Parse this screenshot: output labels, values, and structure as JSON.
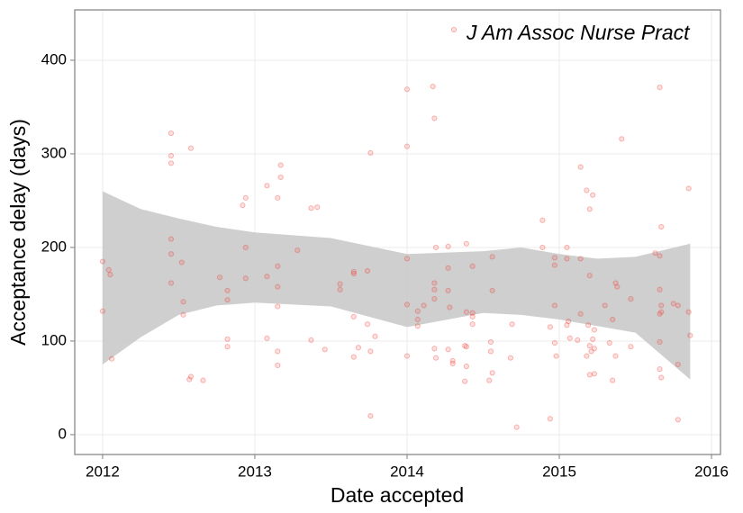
{
  "chart_data": {
    "type": "scatter",
    "xlabel": "Date accepted",
    "ylabel": "Acceptance delay (days)",
    "xlim": [
      2011.817,
      2016.059
    ],
    "ylim": [
      -21.2,
      453.8
    ],
    "xticks": [
      2012,
      2013,
      2014,
      2015,
      2016
    ],
    "yticks": [
      0,
      100,
      200,
      300,
      400
    ],
    "grid": true,
    "legend": "top-right",
    "band": {
      "color": "#cccccc",
      "x": [
        2012.0,
        2012.25,
        2012.5,
        2012.75,
        2013.0,
        2013.5,
        2014.0,
        2014.5,
        2014.75,
        2015.0,
        2015.25,
        2015.5,
        2015.86
      ],
      "upper": [
        260,
        241,
        231,
        222,
        216,
        210,
        193,
        196,
        200,
        193,
        188,
        190,
        204
      ],
      "lower": [
        75,
        104,
        128,
        138,
        141,
        137,
        115,
        130,
        128,
        123,
        116,
        109,
        59
      ]
    },
    "series": [
      {
        "name": "J Am Assoc Nurse Pract",
        "color": "#f0392f",
        "x": [
          2012.0,
          2012.0,
          2012.04,
          2012.05,
          2012.06,
          2012.45,
          2012.45,
          2012.45,
          2012.45,
          2012.45,
          2012.45,
          2012.52,
          2012.53,
          2012.53,
          2012.58,
          2012.58,
          2012.57,
          2012.66,
          2012.77,
          2012.82,
          2012.82,
          2012.82,
          2012.82,
          2012.92,
          2012.94,
          2012.94,
          2012.94,
          2013.08,
          2013.08,
          2013.08,
          2013.15,
          2013.15,
          2013.15,
          2013.15,
          2013.15,
          2013.17,
          2013.17,
          2013.15,
          2013.28,
          2013.37,
          2013.41,
          2013.37,
          2013.46,
          2013.56,
          2013.56,
          2013.65,
          2013.65,
          2013.65,
          2013.68,
          2013.65,
          2013.74,
          2013.74,
          2013.76,
          2013.76,
          2013.76,
          2013.79,
          2014.0,
          2014.0,
          2014.0,
          2014.0,
          2014.0,
          2014.07,
          2014.07,
          2014.07,
          2014.11,
          2014.17,
          2014.18,
          2014.18,
          2014.18,
          2014.18,
          2014.19,
          2014.18,
          2014.19,
          2014.27,
          2014.27,
          2014.27,
          2014.28,
          2014.27,
          2014.3,
          2014.3,
          2014.39,
          2014.39,
          2014.38,
          2014.39,
          2014.38,
          2014.39,
          2014.43,
          2014.43,
          2014.43,
          2014.43,
          2014.56,
          2014.56,
          2014.55,
          2014.55,
          2014.56,
          2014.54,
          2014.68,
          2014.69,
          2014.72,
          2014.89,
          2014.89,
          2014.94,
          2014.94,
          2014.97,
          2014.97,
          2014.97,
          2014.97,
          2014.98,
          2015.05,
          2015.05,
          2015.06,
          2015.05,
          2015.07,
          2015.14,
          2015.14,
          2015.14,
          2015.12,
          2015.18,
          2015.2,
          2015.2,
          2015.22,
          2015.19,
          2015.2,
          2015.21,
          2015.23,
          2015.22,
          2015.18,
          2015.2,
          2015.23,
          2015.23,
          2015.3,
          2015.33,
          2015.35,
          2015.37,
          2015.37,
          2015.35,
          2015.38,
          2015.41,
          2015.47,
          2015.47,
          2015.63,
          2015.66,
          2015.66,
          2015.67,
          2015.66,
          2015.67,
          2015.67,
          2015.66,
          2015.66,
          2015.66,
          2015.67,
          2015.75,
          2015.78,
          2015.78,
          2015.78,
          2015.85,
          2015.85,
          2015.86
        ],
        "values": [
          185,
          132,
          176,
          171,
          81,
          322,
          298,
          290,
          209,
          193,
          162,
          184,
          142,
          128,
          306,
          62,
          59,
          58,
          168,
          154,
          144,
          102,
          94,
          245,
          253,
          200,
          167,
          266,
          169,
          103,
          180,
          158,
          137,
          89,
          74,
          288,
          275,
          253,
          197,
          242,
          243,
          101,
          91,
          161,
          155,
          174,
          172,
          126,
          93,
          83,
          175,
          118,
          301,
          20,
          89,
          105,
          369,
          308,
          188,
          139,
          84,
          132,
          123,
          116,
          138,
          372,
          338,
          162,
          155,
          145,
          200,
          92,
          82,
          201,
          178,
          154,
          136,
          91,
          79,
          76,
          204,
          131,
          95,
          94,
          57,
          73,
          180,
          130,
          126,
          118,
          190,
          154,
          99,
          89,
          66,
          58,
          82,
          118,
          8,
          229,
          200,
          115,
          17,
          189,
          181,
          138,
          98,
          84,
          200,
          188,
          121,
          117,
          103,
          286,
          188,
          129,
          101,
          261,
          170,
          241,
          256,
          117,
          95,
          89,
          92,
          102,
          84,
          64,
          65,
          112,
          138,
          98,
          123,
          162,
          84,
          58,
          158,
          316,
          145,
          94,
          194,
          191,
          371,
          222,
          155,
          138,
          131,
          129,
          99,
          70,
          61,
          140,
          138,
          16,
          75,
          263,
          131,
          106
        ]
      }
    ]
  }
}
